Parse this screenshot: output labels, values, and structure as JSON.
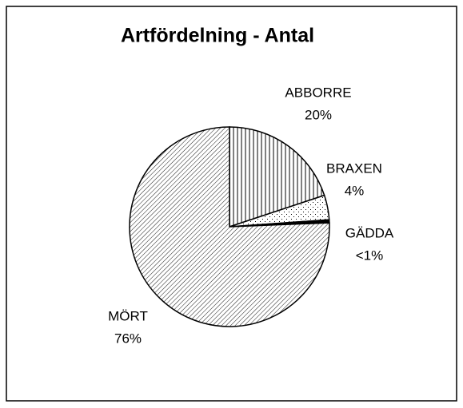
{
  "chart_data": {
    "type": "pie",
    "title": "Artfördelning - Antal",
    "categories": [
      "ABBORRE",
      "BRAXEN",
      "GÄDDA",
      "MÖRT"
    ],
    "values": [
      20,
      4,
      0.5,
      76
    ],
    "value_labels": [
      "20%",
      "4%",
      "<1%",
      "76%"
    ]
  }
}
